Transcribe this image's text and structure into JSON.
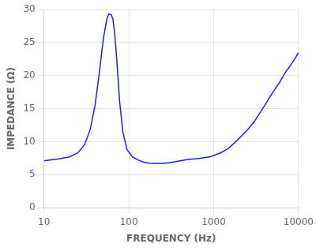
{
  "chart_data": {
    "type": "line",
    "xlabel": "FREQUENCY (Hz)",
    "ylabel": "IMPEDANCE (Ω)",
    "x": [
      10,
      15,
      20,
      25,
      30,
      35,
      40,
      45,
      50,
      55,
      58,
      62,
      65,
      68,
      72,
      78,
      85,
      95,
      110,
      130,
      150,
      175,
      200,
      250,
      300,
      400,
      500,
      600,
      700,
      800,
      900,
      1000,
      1200,
      1500,
      2000,
      2500,
      3000,
      4000,
      5000,
      6000,
      7000,
      8000,
      9000,
      10000
    ],
    "values": [
      7.1,
      7.4,
      7.7,
      8.3,
      9.5,
      11.8,
      15.5,
      20.5,
      25.5,
      28.5,
      29.3,
      29.2,
      28.5,
      26.5,
      22.5,
      16.0,
      11.5,
      8.8,
      7.7,
      7.2,
      6.9,
      6.75,
      6.7,
      6.7,
      6.8,
      7.1,
      7.3,
      7.4,
      7.5,
      7.6,
      7.7,
      7.9,
      8.3,
      9.0,
      10.5,
      11.8,
      13.0,
      15.5,
      17.5,
      19.0,
      20.5,
      21.5,
      22.5,
      23.5
    ],
    "color": "#1a1aff",
    "log": "x",
    "xlim": [
      10,
      10000
    ],
    "xticks": [
      10,
      100,
      1000,
      10000
    ],
    "ylim": [
      0,
      30
    ],
    "yticks": [
      0,
      5,
      10,
      15,
      20,
      25,
      30
    ],
    "grid": true
  }
}
